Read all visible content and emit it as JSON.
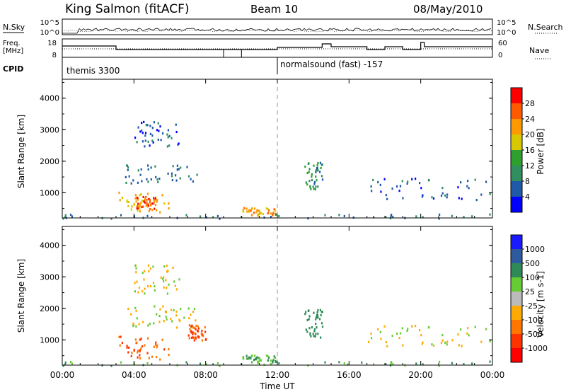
{
  "header": {
    "station": "King Salmon (fitACF)",
    "beam": "Beam 10",
    "date": "08/May/2010"
  },
  "panels": {
    "nsky": {
      "label": "N.Sky",
      "right_label": "N.Search",
      "left_ticks": [
        "10^5",
        "10^0"
      ],
      "right_ticks": [
        "10^5",
        "10^0"
      ]
    },
    "freq": {
      "label_line1": "Freq.",
      "label_line2": "[MHz]",
      "right_label": "Nave",
      "left_ticks": [
        "18",
        "8"
      ],
      "right_ticks": [
        "60",
        "0"
      ]
    },
    "cpid": {
      "label": "CPID",
      "segments": [
        {
          "label": "themis 3300",
          "start_hour": 0.0
        },
        {
          "label": "normalsound (fast) -157",
          "start_hour": 12.0
        }
      ]
    }
  },
  "x_axis": {
    "label": "Time UT",
    "ticks": [
      "00:00",
      "04:00",
      "08:00",
      "12:00",
      "16:00",
      "20:00",
      "00:00"
    ]
  },
  "power_colorbar": {
    "title": "Power [dB]",
    "labels": [
      "28",
      "24",
      "20",
      "16",
      "12",
      "8",
      "4"
    ],
    "colors": [
      "#ff0000",
      "#ff5a00",
      "#ff9900",
      "#d8c800",
      "#2ea02e",
      "#2f8f5e",
      "#1f5aa8",
      "#0000ff"
    ]
  },
  "velocity_colorbar": {
    "title": "Velocity [m s-1]",
    "labels": [
      "1000",
      "500",
      "100",
      "25",
      "-25",
      "-100",
      "-500",
      "-1000"
    ],
    "colors": [
      "#1a1aff",
      "#2e5aa0",
      "#2e8b57",
      "#66cc33",
      "#bbbbbb",
      "#ffaa00",
      "#ff7700",
      "#ff3300",
      "#ff0000"
    ]
  },
  "chart_data": [
    {
      "type": "heatmap",
      "title": "",
      "xlabel": "Time UT",
      "ylabel": "Slant Range [km]",
      "xlim": [
        0,
        24
      ],
      "ylim": [
        200,
        4600
      ],
      "yticks": [
        "1000",
        "2000",
        "3000",
        "4000"
      ],
      "colorbar": "Power [dB]",
      "regions": [
        {
          "t": [
            3.0,
            6.0
          ],
          "r": [
            400,
            1100
          ],
          "value": 20
        },
        {
          "t": [
            4.0,
            5.2
          ],
          "r": [
            500,
            900
          ],
          "value": 26
        },
        {
          "t": [
            3.5,
            7.5
          ],
          "r": [
            1300,
            1900
          ],
          "value": 8
        },
        {
          "t": [
            4.0,
            6.5
          ],
          "r": [
            2500,
            3300
          ],
          "value": 6
        },
        {
          "t": [
            10.0,
            12.0
          ],
          "r": [
            300,
            550
          ],
          "value": 22
        },
        {
          "t": [
            13.5,
            14.5
          ],
          "r": [
            1100,
            2000
          ],
          "value": 10
        },
        {
          "t": [
            17.0,
            24.0
          ],
          "r": [
            800,
            1500
          ],
          "value": 6
        },
        {
          "t": [
            0.0,
            24.0
          ],
          "r": [
            200,
            350
          ],
          "value": 8
        }
      ]
    },
    {
      "type": "heatmap",
      "title": "",
      "xlabel": "Time UT",
      "ylabel": "Slant Range [km]",
      "xlim": [
        0,
        24
      ],
      "ylim": [
        200,
        4600
      ],
      "yticks": [
        "1000",
        "2000",
        "3000",
        "4000"
      ],
      "colorbar": "Velocity [m s-1]",
      "regions": [
        {
          "t": [
            3.0,
            6.0
          ],
          "r": [
            400,
            1200
          ],
          "value": -300
        },
        {
          "t": [
            3.5,
            7.5
          ],
          "r": [
            1400,
            2100
          ],
          "value": 0
        },
        {
          "t": [
            4.0,
            6.5
          ],
          "r": [
            2500,
            3400
          ],
          "value": 0
        },
        {
          "t": [
            7.0,
            8.0
          ],
          "r": [
            1000,
            1500
          ],
          "value": -300
        },
        {
          "t": [
            10.0,
            12.0
          ],
          "r": [
            300,
            550
          ],
          "value": 60
        },
        {
          "t": [
            13.5,
            14.5
          ],
          "r": [
            1100,
            2000
          ],
          "value": 200
        },
        {
          "t": [
            17.0,
            24.0
          ],
          "r": [
            800,
            1500
          ],
          "value": 0
        },
        {
          "t": [
            0.0,
            24.0
          ],
          "r": [
            200,
            350
          ],
          "value": 60
        }
      ]
    }
  ]
}
